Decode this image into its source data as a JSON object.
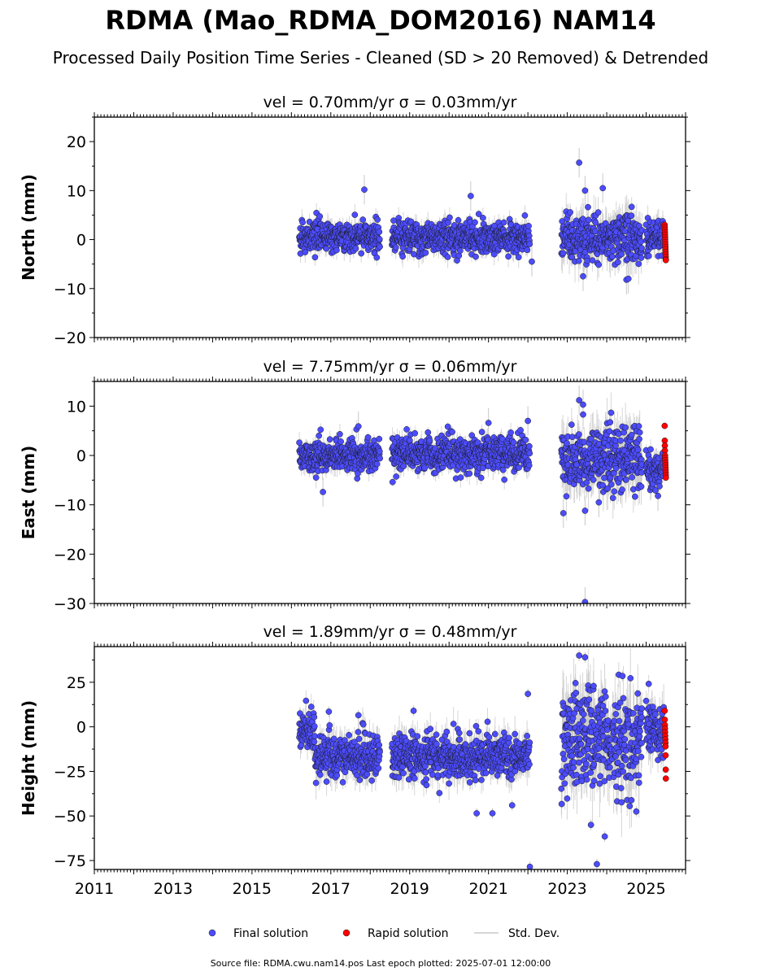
{
  "title": "RDMA (Mao_RDMA_DOM2016) NAM14",
  "subtitle": "Processed Daily Position Time Series - Cleaned (SD > 20 Removed) & Detrended",
  "footer": "Source file: RDMA.cwu.nam14.pos  Last epoch plotted: 2025-07-01 12:00:00",
  "legend": {
    "final": "Final solution",
    "rapid": "Rapid solution",
    "sd": "Std. Dev."
  },
  "colors": {
    "final": "#4c4cff",
    "rapid": "#ff0000",
    "sd": "#c8c8c8",
    "edge": "#1a1a1a"
  },
  "chart_data": {
    "type": "scatter",
    "xlim": [
      2011,
      2026
    ],
    "xticks": [
      2011,
      2013,
      2015,
      2017,
      2019,
      2021,
      2023,
      2025
    ],
    "xtick_labels": [
      "2011",
      "2013",
      "2015",
      "2017",
      "2019",
      "2021",
      "2023",
      "2025"
    ],
    "panels": [
      {
        "id": "north",
        "ylabel": "North (mm)",
        "title": "vel = 0.70mm/yr   σ = 0.03mm/yr",
        "ylim": [
          -20,
          25
        ],
        "yticks": [
          -20,
          -10,
          0,
          10,
          20
        ],
        "ytick_labels": [
          "−20",
          "−10",
          "0",
          "10",
          "20"
        ],
        "segments": [
          {
            "start": 2016.2,
            "end": 2018.25,
            "mean": 0.5,
            "sd": 1.5,
            "err": 1.5
          },
          {
            "start": 2018.55,
            "end": 2022.05,
            "mean": 0.5,
            "sd": 1.6,
            "err": 1.6
          },
          {
            "start": 2022.85,
            "end": 2024.9,
            "mean": 0.2,
            "sd": 2.6,
            "err": 3.0
          },
          {
            "start": 2025.0,
            "end": 2025.45,
            "mean": 0.3,
            "sd": 1.8,
            "err": 1.8
          }
        ],
        "rapid": {
          "start": 2025.47,
          "end": 2025.5,
          "values": [
            3,
            2.5,
            2,
            1.5,
            1,
            0.5,
            0,
            -0.5,
            -1,
            -1.5,
            -2,
            -2.5,
            -3,
            -3.5,
            -4,
            -4.2
          ]
        },
        "outliers": [
          [
            2017.85,
            10.2
          ],
          [
            2020.55,
            8.9
          ],
          [
            2023.3,
            15.7
          ],
          [
            2023.9,
            10.5
          ],
          [
            2023.45,
            10.0
          ],
          [
            2024.5,
            -8.2
          ],
          [
            2023.4,
            -7.5
          ],
          [
            2024.55,
            -8.0
          ],
          [
            2022.1,
            -4.5
          ]
        ]
      },
      {
        "id": "east",
        "ylabel": "East (mm)",
        "title": "vel = 7.75mm/yr   σ = 0.06mm/yr",
        "ylim": [
          -30,
          15
        ],
        "yticks": [
          -30,
          -20,
          -10,
          0,
          10
        ],
        "ytick_labels": [
          "−30",
          "−20",
          "−10",
          "0",
          "10"
        ],
        "segments": [
          {
            "start": 2016.2,
            "end": 2018.25,
            "mean": 0.0,
            "sd": 1.6,
            "err": 1.5
          },
          {
            "start": 2018.55,
            "end": 2022.05,
            "mean": 0.3,
            "sd": 1.7,
            "err": 1.6
          },
          {
            "start": 2022.85,
            "end": 2024.9,
            "mean": -1.0,
            "sd": 3.2,
            "err": 3.5
          },
          {
            "start": 2025.0,
            "end": 2025.45,
            "mean": -2.5,
            "sd": 2.0,
            "err": 1.8
          }
        ],
        "rapid": {
          "start": 2025.47,
          "end": 2025.5,
          "values": [
            6,
            3,
            2,
            1,
            0,
            -0.5,
            -1,
            -1.5,
            -2,
            -2.5,
            -3,
            -3.5,
            -4,
            -4.5
          ]
        },
        "outliers": [
          [
            2016.8,
            -7.4
          ],
          [
            2017.7,
            5.9
          ],
          [
            2021.0,
            6.6
          ],
          [
            2022.0,
            7.0
          ],
          [
            2022.9,
            -11.7
          ],
          [
            2023.3,
            11.2
          ],
          [
            2023.4,
            10.3
          ],
          [
            2023.45,
            -11.2
          ],
          [
            2023.45,
            -29.7
          ],
          [
            2023.4,
            8.3
          ],
          [
            2023.8,
            -9.5
          ],
          [
            2025.3,
            -8.2
          ]
        ]
      },
      {
        "id": "height",
        "ylabel": "Height (mm)",
        "title": "vel = 1.89mm/yr   σ = 0.48mm/yr",
        "ylim": [
          -80,
          45
        ],
        "yticks": [
          -75,
          -50,
          -25,
          0,
          25
        ],
        "ytick_labels": [
          "−75",
          "−50",
          "−25",
          "0",
          "25"
        ],
        "segments": [
          {
            "start": 2016.2,
            "end": 2016.6,
            "mean": -3,
            "sd": 5,
            "err": 6
          },
          {
            "start": 2016.6,
            "end": 2018.25,
            "mean": -17,
            "sd": 6,
            "err": 7
          },
          {
            "start": 2018.55,
            "end": 2022.05,
            "mean": -17,
            "sd": 6,
            "err": 7
          },
          {
            "start": 2022.85,
            "end": 2024.9,
            "mean": -8,
            "sd": 14,
            "err": 14
          },
          {
            "start": 2025.0,
            "end": 2025.45,
            "mean": -4,
            "sd": 8,
            "err": 9
          }
        ],
        "rapid": {
          "start": 2025.47,
          "end": 2025.5,
          "values": [
            9,
            4,
            1,
            -1,
            -3,
            -5,
            -7,
            -9,
            -11,
            -16,
            -24,
            -29
          ]
        },
        "outliers": [
          [
            2022.0,
            18.5
          ],
          [
            2022.05,
            -78.5
          ],
          [
            2023.3,
            40.0
          ],
          [
            2023.45,
            39.0
          ],
          [
            2023.6,
            -55.0
          ],
          [
            2023.75,
            -77.0
          ],
          [
            2023.95,
            -61.5
          ],
          [
            2024.4,
            28.5
          ],
          [
            2024.75,
            -47.5
          ],
          [
            2019.1,
            9.0
          ],
          [
            2020.7,
            -48.5
          ],
          [
            2021.1,
            -48.5
          ],
          [
            2021.6,
            -44.0
          ],
          [
            2017.7,
            6.5
          ],
          [
            2016.95,
            8.5
          ]
        ]
      }
    ]
  }
}
